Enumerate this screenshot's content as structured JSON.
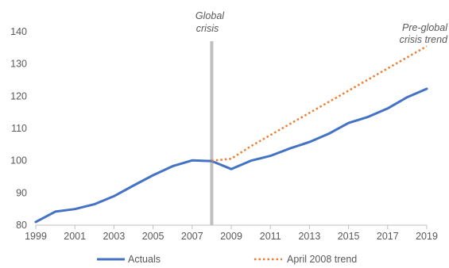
{
  "chart_data": {
    "type": "line",
    "x": [
      1999,
      2000,
      2001,
      2002,
      2003,
      2004,
      2005,
      2006,
      2007,
      2008,
      2009,
      2010,
      2011,
      2012,
      2013,
      2014,
      2015,
      2016,
      2017,
      2018,
      2019
    ],
    "series": [
      {
        "name": "Actuals",
        "color": "#4472c4",
        "style": "solid",
        "x": [
          1999,
          2000,
          2001,
          2002,
          2003,
          2004,
          2005,
          2006,
          2007,
          2008,
          2009,
          2010,
          2011,
          2012,
          2013,
          2014,
          2015,
          2016,
          2017,
          2018,
          2019
        ],
        "values": [
          81,
          84.2,
          85.0,
          86.5,
          89.0,
          92.3,
          95.5,
          98.3,
          100.1,
          99.9,
          97.4,
          100.0,
          101.5,
          103.8,
          105.8,
          108.4,
          111.7,
          113.6,
          116.2,
          119.7,
          122.3
        ]
      },
      {
        "name": "April 2008 trend",
        "color": "#ed7d31",
        "style": "dotted",
        "x": [
          2008,
          2009,
          2010,
          2019
        ],
        "values": [
          100.0,
          100.6,
          104.5,
          135.5
        ]
      }
    ],
    "xticks": [
      "1999",
      "2001",
      "2003",
      "2005",
      "2007",
      "2009",
      "2011",
      "2013",
      "2015",
      "2017",
      "2019"
    ],
    "yticks": [
      "80",
      "90",
      "100",
      "110",
      "120",
      "130",
      "140"
    ],
    "xlim": [
      1999,
      2019
    ],
    "ylim": [
      80,
      140
    ],
    "annotations": {
      "crisis_line1": "Global",
      "crisis_line2": "crisis",
      "trend_line1": "Pre-global",
      "trend_line2": "crisis trend"
    },
    "crisis_year": 2008,
    "crisis_color": "#bfbfbf",
    "legend_position": "bottom",
    "grid": false
  }
}
